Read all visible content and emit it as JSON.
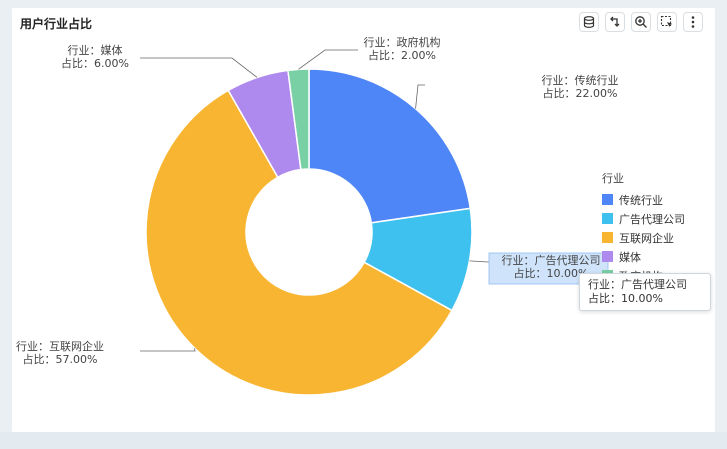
{
  "panel": {
    "title": "用户行业占比"
  },
  "toolbar": [
    {
      "name": "data-view-icon"
    },
    {
      "name": "restore-icon"
    },
    {
      "name": "zoom-in-icon"
    },
    {
      "name": "select-icon"
    },
    {
      "name": "more-icon"
    }
  ],
  "chart_data": {
    "type": "pie",
    "variant": "donut",
    "legend": {
      "title": "行业",
      "placement": "right"
    },
    "slices": [
      {
        "name": "传统行业",
        "value": 22.0,
        "color": "#4e86f7"
      },
      {
        "name": "广告代理公司",
        "value": 10.0,
        "color": "#3ec1ef"
      },
      {
        "name": "互联网企业",
        "value": 57.0,
        "color": "#f8b532"
      },
      {
        "name": "媒体",
        "value": 6.0,
        "color": "#ae89ee"
      },
      {
        "name": "政府机构",
        "value": 2.0,
        "color": "#79d0a5"
      }
    ],
    "label_format": {
      "name_prefix": "行业：",
      "value_prefix": "占比：",
      "value_suffix": "%"
    },
    "highlighted": "广告代理公司"
  },
  "tooltip": {
    "line1": "行业：广告代理公司",
    "line2": "占比：10.00%"
  }
}
